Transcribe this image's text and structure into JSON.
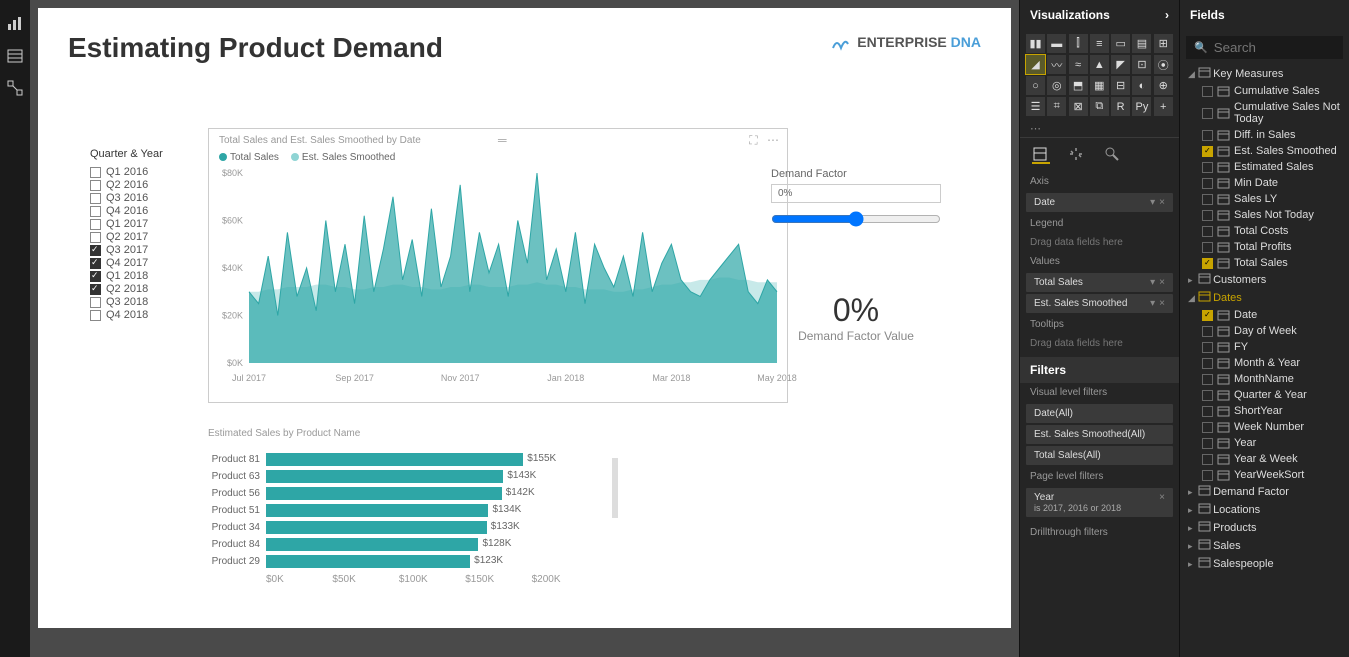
{
  "leftRail": {
    "icons": [
      "bar-chart-icon",
      "table-icon",
      "model-icon"
    ]
  },
  "page": {
    "title": "Estimating Product Demand",
    "logo": {
      "text1": "ENTERPRISE ",
      "text2": "DNA"
    }
  },
  "slicer": {
    "title": "Quarter & Year",
    "items": [
      {
        "label": "Q1 2016",
        "checked": false
      },
      {
        "label": "Q2 2016",
        "checked": false
      },
      {
        "label": "Q3 2016",
        "checked": false
      },
      {
        "label": "Q4 2016",
        "checked": false
      },
      {
        "label": "Q1 2017",
        "checked": false
      },
      {
        "label": "Q2 2017",
        "checked": false
      },
      {
        "label": "Q3 2017",
        "checked": true
      },
      {
        "label": "Q4 2017",
        "checked": true
      },
      {
        "label": "Q1 2018",
        "checked": true
      },
      {
        "label": "Q2 2018",
        "checked": true
      },
      {
        "label": "Q3 2018",
        "checked": false
      },
      {
        "label": "Q4 2018",
        "checked": false
      }
    ]
  },
  "areaChart": {
    "title": "Total Sales and Est. Sales Smoothed by Date",
    "legend": [
      {
        "label": "Total Sales",
        "color": "#2ea6a6"
      },
      {
        "label": "Est. Sales Smoothed",
        "color": "#8fd4d4"
      }
    ],
    "yTicks": [
      "$80K",
      "$60K",
      "$40K",
      "$20K",
      "$0K"
    ],
    "xTicks": [
      "Jul 2017",
      "Sep 2017",
      "Nov 2017",
      "Jan 2018",
      "Mar 2018",
      "May 2018"
    ],
    "ylim": [
      0,
      80
    ],
    "colors": {
      "series1": "#2ea6a6",
      "series2": "#8fd4d4",
      "grid": "#eeeeee",
      "axis": "#999999",
      "bg": "#ffffff"
    },
    "series1": [
      30,
      25,
      45,
      20,
      55,
      28,
      40,
      22,
      60,
      30,
      50,
      25,
      62,
      30,
      48,
      70,
      35,
      52,
      28,
      65,
      32,
      45,
      75,
      30,
      55,
      38,
      50,
      28,
      60,
      42,
      80,
      35,
      48,
      30,
      55,
      25,
      50,
      40,
      32,
      45,
      28,
      55,
      30,
      42,
      50,
      35,
      30,
      28,
      35,
      40,
      45,
      50,
      30,
      25,
      35,
      30
    ],
    "series2": [
      30,
      30,
      31,
      31,
      32,
      32,
      32,
      33,
      33,
      32,
      32,
      31,
      31,
      32,
      32,
      33,
      33,
      32,
      32,
      31,
      31,
      32,
      32,
      33,
      33,
      32,
      32,
      32,
      33,
      33,
      34,
      33,
      33,
      32,
      32,
      31,
      31,
      31,
      30,
      30,
      31,
      31,
      32,
      33,
      33,
      34,
      34,
      35,
      35,
      36,
      36,
      35,
      35,
      34,
      34,
      34
    ]
  },
  "demand": {
    "label": "Demand Factor",
    "boxValue": "0%",
    "big": "0%",
    "sub": "Demand Factor Value"
  },
  "barChart": {
    "title": "Estimated Sales by Product Name",
    "color": "#2ea6a6",
    "xmax": 200,
    "rows": [
      {
        "label": "Product 81",
        "value": 155,
        "display": "$155K"
      },
      {
        "label": "Product 63",
        "value": 143,
        "display": "$143K"
      },
      {
        "label": "Product 56",
        "value": 142,
        "display": "$142K"
      },
      {
        "label": "Product 51",
        "value": 134,
        "display": "$134K"
      },
      {
        "label": "Product 34",
        "value": 133,
        "display": "$133K"
      },
      {
        "label": "Product 84",
        "value": 128,
        "display": "$128K"
      },
      {
        "label": "Product 29",
        "value": 123,
        "display": "$123K"
      }
    ],
    "xTicks": [
      "$0K",
      "$50K",
      "$100K",
      "$150K",
      "$200K"
    ]
  },
  "vizPanel": {
    "header": "Visualizations",
    "sections": {
      "axis": "Axis",
      "legend": "Legend",
      "values": "Values",
      "tooltips": "Tooltips",
      "dragHint": "Drag data fields here",
      "filters": "Filters",
      "visualFilters": "Visual level filters",
      "pageFilters": "Page level filters",
      "drillthrough": "Drillthrough filters"
    },
    "wells": {
      "axis": [
        {
          "label": "Date"
        }
      ],
      "values": [
        {
          "label": "Total Sales"
        },
        {
          "label": "Est. Sales Smoothed"
        }
      ]
    },
    "filterItems": [
      {
        "label": "Date(All)"
      },
      {
        "label": "Est. Sales Smoothed(All)"
      },
      {
        "label": "Total Sales(All)"
      }
    ],
    "pageFilter": {
      "label": "Year",
      "sub": "is 2017, 2016 or 2018"
    }
  },
  "fieldsPanel": {
    "header": "Fields",
    "searchPlaceholder": "Search",
    "groups": [
      {
        "name": "Key Measures",
        "expanded": true,
        "items": [
          {
            "label": "Cumulative Sales",
            "checked": false
          },
          {
            "label": "Cumulative Sales Not Today",
            "checked": false
          },
          {
            "label": "Diff. in Sales",
            "checked": false
          },
          {
            "label": "Est. Sales Smoothed",
            "checked": true
          },
          {
            "label": "Estimated Sales",
            "checked": false
          },
          {
            "label": "Min Date",
            "checked": false
          },
          {
            "label": "Sales LY",
            "checked": false
          },
          {
            "label": "Sales Not Today",
            "checked": false
          },
          {
            "label": "Total Costs",
            "checked": false
          },
          {
            "label": "Total Profits",
            "checked": false
          },
          {
            "label": "Total Sales",
            "checked": true
          }
        ]
      },
      {
        "name": "Customers",
        "expanded": false,
        "items": []
      },
      {
        "name": "Dates",
        "expanded": true,
        "sel": true,
        "items": [
          {
            "label": "Date",
            "checked": true
          },
          {
            "label": "Day of Week",
            "checked": false
          },
          {
            "label": "FY",
            "checked": false
          },
          {
            "label": "Month & Year",
            "checked": false
          },
          {
            "label": "MonthName",
            "checked": false
          },
          {
            "label": "Quarter & Year",
            "checked": false
          },
          {
            "label": "ShortYear",
            "checked": false
          },
          {
            "label": "Week Number",
            "checked": false
          },
          {
            "label": "Year",
            "checked": false
          },
          {
            "label": "Year & Week",
            "checked": false
          },
          {
            "label": "YearWeekSort",
            "checked": false
          }
        ]
      },
      {
        "name": "Demand Factor",
        "expanded": false,
        "items": []
      },
      {
        "name": "Locations",
        "expanded": false,
        "items": []
      },
      {
        "name": "Products",
        "expanded": false,
        "items": []
      },
      {
        "name": "Sales",
        "expanded": false,
        "items": []
      },
      {
        "name": "Salespeople",
        "expanded": false,
        "items": []
      }
    ]
  }
}
